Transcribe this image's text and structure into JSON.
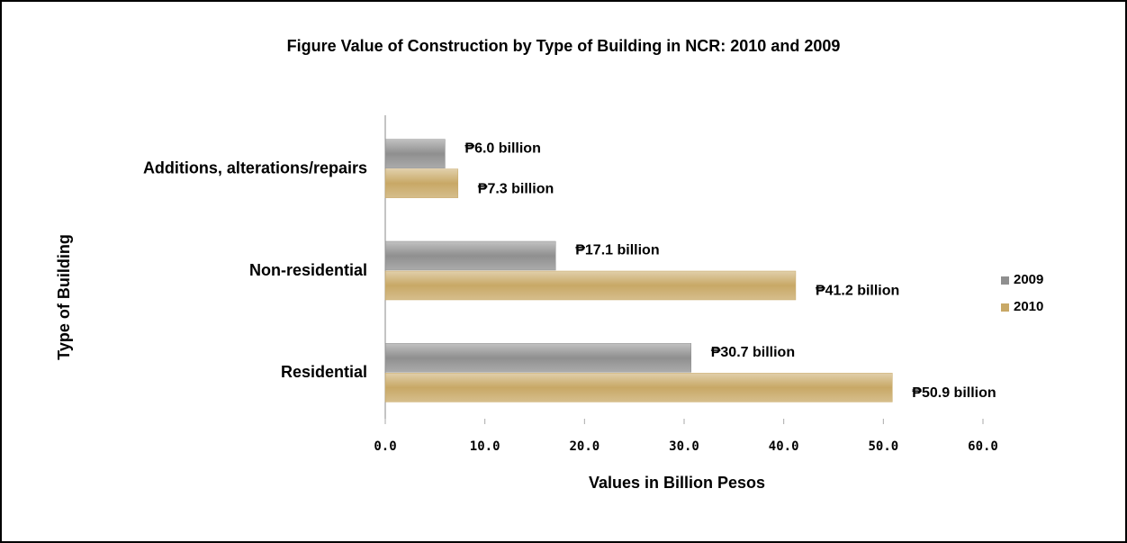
{
  "chart_data": {
    "type": "bar",
    "orientation": "horizontal",
    "title": "Figure Value of Construction by Type of Building in NCR: 2010 and 2009",
    "xlabel": "Values in Billion Pesos",
    "ylabel": "Type of Building",
    "categories": [
      "Additions, alterations/repairs",
      "Non-residential",
      "Residential"
    ],
    "series": [
      {
        "name": "2009",
        "color": "#8f8f8f",
        "values": [
          6.0,
          17.1,
          30.7
        ],
        "value_labels": [
          "₱6.0 billion",
          "₱17.1 billion",
          "₱30.7 billion"
        ]
      },
      {
        "name": "2010",
        "color": "#c8a866",
        "values": [
          7.3,
          41.2,
          50.9
        ],
        "value_labels": [
          "₱7.3 billion",
          "₱41.2 billion",
          "₱50.9 billion"
        ]
      }
    ],
    "xlim": [
      0,
      60
    ],
    "xticks": [
      {
        "value": 0,
        "label": "0.0"
      },
      {
        "value": 10,
        "label": "10.0"
      },
      {
        "value": 20,
        "label": "20.0"
      },
      {
        "value": 30,
        "label": "30.0"
      },
      {
        "value": 40,
        "label": "40.0"
      },
      {
        "value": 50,
        "label": "50.0"
      },
      {
        "value": 60,
        "label": "60.0"
      }
    ],
    "grid": false,
    "legend": "right"
  }
}
